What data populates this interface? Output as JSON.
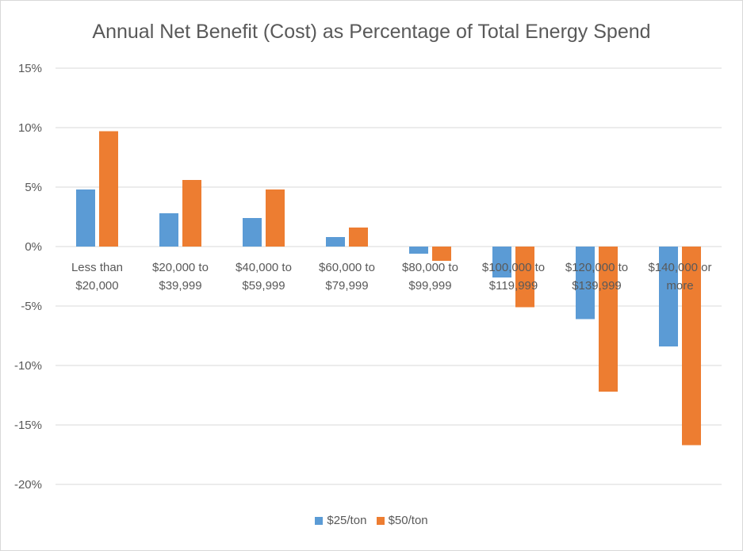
{
  "chart_data": {
    "type": "bar",
    "title": "Annual Net Benefit (Cost) as Percentage of Total Energy Spend",
    "xlabel": "",
    "ylabel": "",
    "ylim": [
      -20,
      15
    ],
    "yticks": [
      "15%",
      "10%",
      "5%",
      "0%",
      "-5%",
      "-10%",
      "-15%",
      "-20%"
    ],
    "grid": true,
    "legend_position": "bottom",
    "categories": [
      [
        "Less than",
        "$20,000"
      ],
      [
        "$20,000 to",
        "$39,999"
      ],
      [
        "$40,000 to",
        "$59,999"
      ],
      [
        "$60,000 to",
        "$79,999"
      ],
      [
        "$80,000 to",
        "$99,999"
      ],
      [
        "$100,000 to",
        "$119,999"
      ],
      [
        "$120,000 to",
        "$139,999"
      ],
      [
        "$140,000 or",
        "more"
      ]
    ],
    "series": [
      {
        "name": "$25/ton",
        "color": "#5b9bd5",
        "values": [
          4.8,
          2.8,
          2.4,
          0.8,
          -0.6,
          -2.6,
          -6.1,
          -8.4
        ]
      },
      {
        "name": "$50/ton",
        "color": "#ed7d31",
        "values": [
          9.7,
          5.6,
          4.8,
          1.6,
          -1.2,
          -5.1,
          -12.2,
          -16.7
        ]
      }
    ]
  }
}
